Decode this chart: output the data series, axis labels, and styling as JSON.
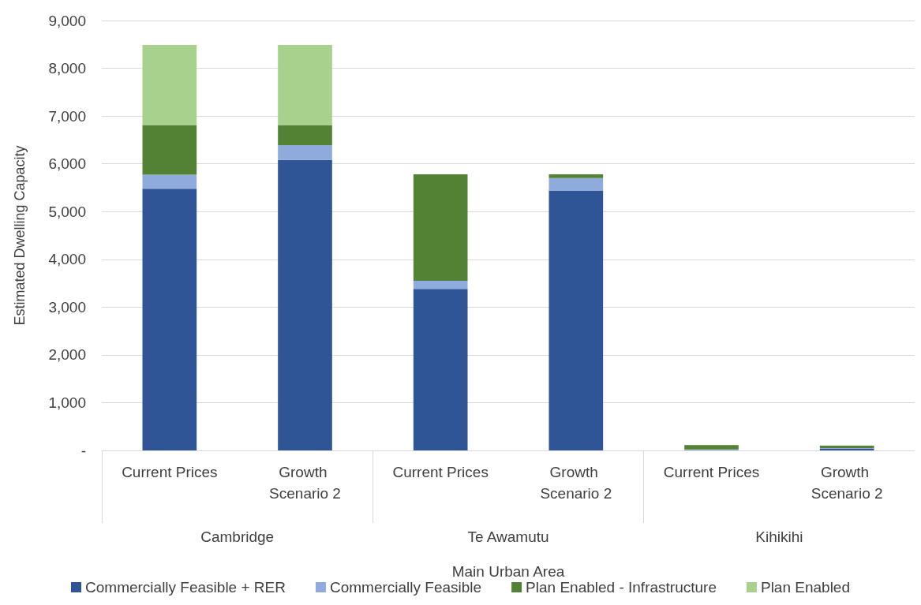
{
  "chart_data": {
    "type": "bar",
    "stacked": true,
    "categories": [
      "Current Prices",
      "Growth Scenario 2",
      "Current Prices",
      "Growth Scenario 2",
      "Current Prices",
      "Growth Scenario 2"
    ],
    "annotations": [
      "Cambridge",
      "Te Awamutu",
      "Kihikihi"
    ],
    "xlabel": "Main Urban Area",
    "ylabel": "Estimated Dwelling Capacity",
    "series": [
      {
        "name": "Commercially Feasible + RER",
        "color": "#2f5597",
        "values": [
          5480,
          6080,
          3380,
          5440,
          0,
          40
        ]
      },
      {
        "name": "Commercially Feasible",
        "color": "#8faadc",
        "values": [
          290,
          310,
          170,
          260,
          20,
          10
        ]
      },
      {
        "name": "Plan Enabled - Infrastructure",
        "color": "#548235",
        "values": [
          1040,
          420,
          2230,
          80,
          90,
          50
        ]
      },
      {
        "name": "Plan Enabled",
        "color": "#a9d18e",
        "values": [
          1680,
          1680,
          0,
          0,
          0,
          0
        ]
      }
    ],
    "ylim": [
      0,
      9000
    ],
    "yticks": [
      {
        "value": 0,
        "label": "-"
      },
      {
        "value": 1000,
        "label": "1,000"
      },
      {
        "value": 2000,
        "label": "2,000"
      },
      {
        "value": 3000,
        "label": "3,000"
      },
      {
        "value": 4000,
        "label": "4,000"
      },
      {
        "value": 5000,
        "label": "5,000"
      },
      {
        "value": 6000,
        "label": "6,000"
      },
      {
        "value": 7000,
        "label": "7,000"
      },
      {
        "value": 8000,
        "label": "8,000"
      },
      {
        "value": 9000,
        "label": "9,000"
      }
    ],
    "grid": "y",
    "legend": "bottom"
  }
}
